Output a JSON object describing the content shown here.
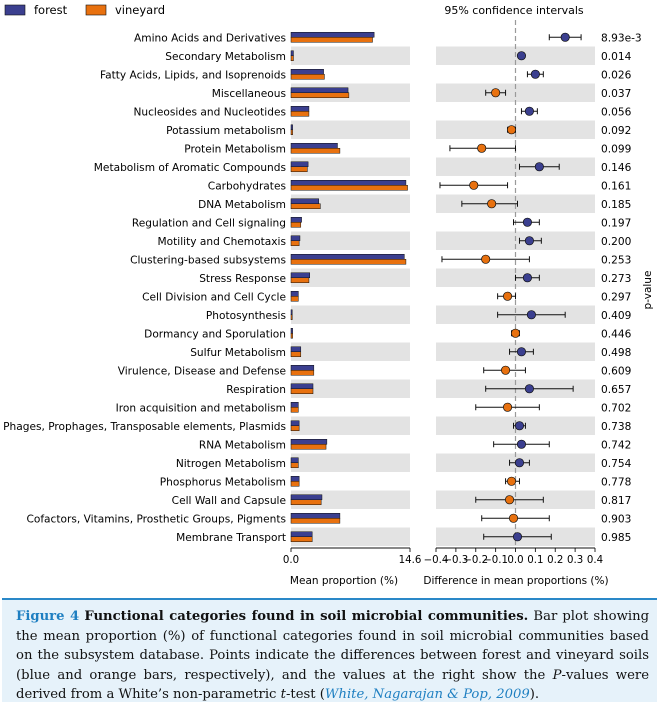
{
  "chart_data": {
    "type": "bar",
    "legend": [
      {
        "name": "forest",
        "color": "#3b3f8f"
      },
      {
        "name": "vineyard",
        "color": "#e8710f"
      }
    ],
    "ci_title": "95% confidence intervals",
    "left_xlabel": "Mean proportion (%)",
    "right_xlabel": "Difference in mean proportions (%)",
    "pvalue_label": "p-value",
    "left_xlim": [
      0.0,
      14.6
    ],
    "left_ticks": [
      "0.0",
      "14.6"
    ],
    "right_xlim": [
      -0.4,
      0.4
    ],
    "right_ticks": [
      "−0.4",
      "−0.3",
      "−0.2",
      "−0.1",
      "0.0",
      "0.1",
      "0.2",
      "0.3",
      "0.4"
    ],
    "categories": [
      "Amino Acids and Derivatives",
      "Secondary Metabolism",
      "Fatty Acids, Lipids, and Isoprenoids",
      "Miscellaneous",
      "Nucleosides and Nucleotides",
      "Potassium metabolism",
      "Protein Metabolism",
      "Metabolism of Aromatic Compounds",
      "Carbohydrates",
      "DNA Metabolism",
      "Regulation and Cell signaling",
      "Motility and Chemotaxis",
      "Clustering-based subsystems",
      "Stress Response",
      "Cell Division and Cell Cycle",
      "Photosynthesis",
      "Dormancy and Sporulation",
      "Sulfur Metabolism",
      "Virulence, Disease and Defense",
      "Respiration",
      "Iron acquisition and metabolism",
      "Phages, Prophages, Transposable elements, Plasmids",
      "RNA Metabolism",
      "Nitrogen Metabolism",
      "Phosphorus Metabolism",
      "Cell Wall and Capsule",
      "Cofactors, Vitamins, Prosthetic Groups, Pigments",
      "Membrane Transport"
    ],
    "series": [
      {
        "name": "forest",
        "values": [
          10.2,
          0.3,
          4.0,
          7.0,
          2.2,
          0.2,
          5.7,
          2.1,
          14.1,
          3.4,
          1.3,
          1.1,
          13.9,
          2.3,
          0.9,
          0.15,
          0.2,
          1.2,
          2.8,
          2.7,
          0.9,
          1.0,
          4.4,
          0.9,
          1.0,
          3.8,
          6.0,
          2.6
        ]
      },
      {
        "name": "vineyard",
        "values": [
          10.0,
          0.3,
          4.1,
          7.1,
          2.2,
          0.2,
          6.0,
          2.0,
          14.3,
          3.6,
          1.2,
          1.0,
          14.1,
          2.2,
          0.9,
          0.15,
          0.2,
          1.2,
          2.8,
          2.7,
          0.9,
          1.0,
          4.3,
          0.9,
          1.0,
          3.7,
          6.0,
          2.6
        ]
      }
    ],
    "difference": [
      {
        "value": 0.25,
        "lo": 0.17,
        "hi": 0.33,
        "favors": "forest"
      },
      {
        "value": 0.03,
        "lo": 0.02,
        "hi": 0.04,
        "favors": "forest"
      },
      {
        "value": 0.1,
        "lo": 0.06,
        "hi": 0.14,
        "favors": "forest"
      },
      {
        "value": -0.1,
        "lo": -0.15,
        "hi": -0.05,
        "favors": "vineyard"
      },
      {
        "value": 0.07,
        "lo": 0.03,
        "hi": 0.11,
        "favors": "forest"
      },
      {
        "value": -0.02,
        "lo": -0.04,
        "hi": 0.0,
        "favors": "vineyard"
      },
      {
        "value": -0.17,
        "lo": -0.33,
        "hi": 0.0,
        "favors": "vineyard"
      },
      {
        "value": 0.12,
        "lo": 0.02,
        "hi": 0.22,
        "favors": "forest"
      },
      {
        "value": -0.21,
        "lo": -0.38,
        "hi": -0.04,
        "favors": "vineyard"
      },
      {
        "value": -0.12,
        "lo": -0.27,
        "hi": 0.01,
        "favors": "vineyard"
      },
      {
        "value": 0.06,
        "lo": -0.01,
        "hi": 0.12,
        "favors": "forest"
      },
      {
        "value": 0.07,
        "lo": 0.02,
        "hi": 0.13,
        "favors": "forest"
      },
      {
        "value": -0.15,
        "lo": -0.37,
        "hi": 0.07,
        "favors": "vineyard"
      },
      {
        "value": 0.06,
        "lo": 0.0,
        "hi": 0.12,
        "favors": "forest"
      },
      {
        "value": -0.04,
        "lo": -0.09,
        "hi": 0.0,
        "favors": "vineyard"
      },
      {
        "value": 0.08,
        "lo": -0.09,
        "hi": 0.25,
        "favors": "forest"
      },
      {
        "value": 0.0,
        "lo": -0.02,
        "hi": 0.02,
        "favors": "vineyard"
      },
      {
        "value": 0.03,
        "lo": -0.03,
        "hi": 0.09,
        "favors": "forest"
      },
      {
        "value": -0.05,
        "lo": -0.16,
        "hi": 0.05,
        "favors": "vineyard"
      },
      {
        "value": 0.07,
        "lo": -0.15,
        "hi": 0.29,
        "favors": "forest"
      },
      {
        "value": -0.04,
        "lo": -0.2,
        "hi": 0.12,
        "favors": "vineyard"
      },
      {
        "value": 0.02,
        "lo": -0.01,
        "hi": 0.05,
        "favors": "forest"
      },
      {
        "value": 0.03,
        "lo": -0.11,
        "hi": 0.17,
        "favors": "forest"
      },
      {
        "value": 0.02,
        "lo": -0.03,
        "hi": 0.07,
        "favors": "forest"
      },
      {
        "value": -0.02,
        "lo": -0.05,
        "hi": 0.02,
        "favors": "vineyard"
      },
      {
        "value": -0.03,
        "lo": -0.2,
        "hi": 0.14,
        "favors": "vineyard"
      },
      {
        "value": -0.01,
        "lo": -0.17,
        "hi": 0.17,
        "favors": "vineyard"
      },
      {
        "value": 0.01,
        "lo": -0.16,
        "hi": 0.18,
        "favors": "forest"
      }
    ],
    "pvalues": [
      "8.93e-3",
      "0.014",
      "0.026",
      "0.037",
      "0.056",
      "0.092",
      "0.099",
      "0.146",
      "0.161",
      "0.185",
      "0.197",
      "0.200",
      "0.253",
      "0.273",
      "0.297",
      "0.409",
      "0.446",
      "0.498",
      "0.609",
      "0.657",
      "0.702",
      "0.738",
      "0.742",
      "0.754",
      "0.778",
      "0.817",
      "0.903",
      "0.985"
    ]
  },
  "caption": {
    "label": "Figure 4",
    "title": "Functional categories found in soil microbial communities.",
    "text_1": " Bar plot showing the mean proportion (%) of functional categories found in soil microbial communities based on the subsystem database. Points indicate the differences between forest and vineyard soils (blue and orange bars, respectively), and the values at the right show the ",
    "p_symbol": "P",
    "text_2": "-values were derived from a White’s non-parametric ",
    "t_symbol": "t",
    "text_3": "-test (",
    "reference": "White, Nagarajan & Pop, 2009",
    "text_4": ")."
  }
}
